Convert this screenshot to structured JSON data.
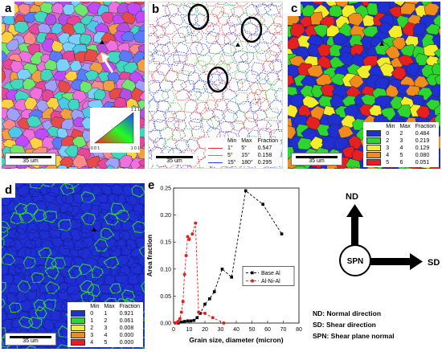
{
  "panel_a": {
    "label": "a",
    "scale": "35 um",
    "ipf_corners": [
      "1 1 1",
      "0 0 1",
      "1 0 1"
    ]
  },
  "panel_b": {
    "label": "b",
    "scale": "35 um",
    "headers": [
      "Min",
      "Max",
      "Fraction"
    ],
    "rows": [
      {
        "color": "#e32b2b",
        "min": "1°",
        "max": "5°",
        "fraction": "0.547"
      },
      {
        "color": "#33c733",
        "min": "5°",
        "max": "15°",
        "fraction": "0.158"
      },
      {
        "color": "#2a3bd6",
        "min": "15°",
        "max": "180°",
        "fraction": "0.295"
      }
    ]
  },
  "panel_c": {
    "label": "c",
    "scale": "35 um",
    "headers": [
      "Min",
      "Max",
      "Fraction"
    ],
    "rows": [
      {
        "color": "#1f2fd3",
        "min": "0",
        "max": "2",
        "fraction": "0.484"
      },
      {
        "color": "#2ed52e",
        "min": "2",
        "max": "3",
        "fraction": "0.219"
      },
      {
        "color": "#f4ee2a",
        "min": "3",
        "max": "4",
        "fraction": "0.129"
      },
      {
        "color": "#f08c1c",
        "min": "4",
        "max": "5",
        "fraction": "0.080"
      },
      {
        "color": "#e62020",
        "min": "5",
        "max": "6",
        "fraction": "0.051"
      }
    ]
  },
  "panel_d": {
    "label": "d",
    "scale": "35 um",
    "headers": [
      "Min",
      "Max",
      "Fraction"
    ],
    "rows": [
      {
        "color": "#1f2fd3",
        "min": "0",
        "max": "1",
        "fraction": "0.921"
      },
      {
        "color": "#2ed52e",
        "min": "1",
        "max": "2",
        "fraction": "0.061"
      },
      {
        "color": "#f4ee2a",
        "min": "2",
        "max": "3",
        "fraction": "0.008"
      },
      {
        "color": "#f08c1c",
        "min": "3",
        "max": "4",
        "fraction": "0.000"
      },
      {
        "color": "#e62020",
        "min": "4",
        "max": "5",
        "fraction": "0.000"
      }
    ]
  },
  "panel_e": {
    "label": "e"
  },
  "chart_data": {
    "type": "line",
    "xlabel": "Grain size, diameter (micron)",
    "ylabel": "Area fraction",
    "xlim": [
      0,
      80
    ],
    "ylim": [
      0,
      0.25
    ],
    "xticks": [
      0,
      10,
      20,
      30,
      40,
      50,
      60,
      70,
      80
    ],
    "yticks": [
      0.0,
      0.05,
      0.1,
      0.15,
      0.2,
      0.25
    ],
    "ytick_labels": [
      "0.00",
      "0.05",
      "0.10",
      "0.15",
      "0.20",
      "0.25"
    ],
    "legend_position": "center-right",
    "series": [
      {
        "name": "Base Al",
        "color": "#000000",
        "marker": "square",
        "x": [
          3,
          5,
          7,
          9,
          11,
          13,
          15,
          17,
          20,
          23,
          26,
          31,
          37,
          46,
          57,
          69
        ],
        "y": [
          0.0,
          0.002,
          0.003,
          0.004,
          0.004,
          0.005,
          0.01,
          0.018,
          0.035,
          0.045,
          0.058,
          0.1,
          0.085,
          0.245,
          0.22,
          0.165
        ]
      },
      {
        "name": "Al-Ni-Al",
        "color": "#e02020",
        "marker": "circle",
        "x": [
          1,
          2,
          3,
          4,
          5,
          6,
          7,
          8,
          9,
          10,
          12,
          14,
          16,
          20,
          25,
          32
        ],
        "y": [
          0.0,
          0.001,
          0.003,
          0.008,
          0.02,
          0.04,
          0.09,
          0.125,
          0.16,
          0.155,
          0.165,
          0.185,
          0.02,
          0.018,
          0.01,
          0.0
        ]
      }
    ]
  },
  "diagram": {
    "nd": "ND",
    "sd": "SD",
    "spn": "SPN",
    "definitions": [
      "ND: Normal direction",
      "SD: Shear direction",
      "SPN: Shear plane normal"
    ]
  }
}
